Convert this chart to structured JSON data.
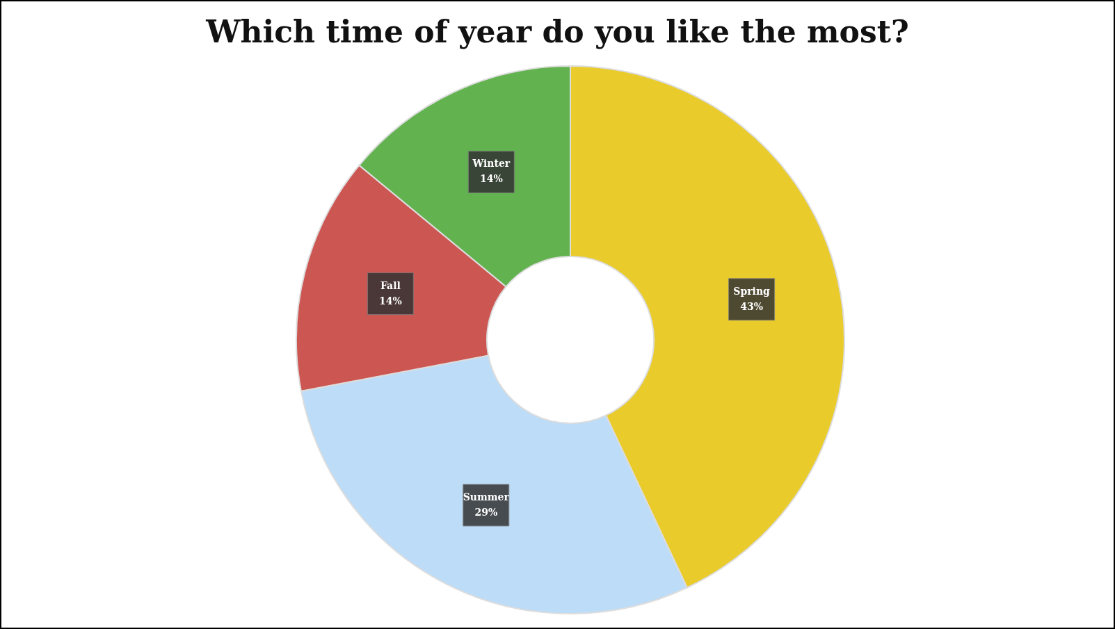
{
  "chart_data": {
    "type": "donut",
    "title": "Which time of year do you like the most?",
    "categories": [
      "Spring",
      "Summer",
      "Fall",
      "Winter"
    ],
    "values": [
      43,
      29,
      14,
      14
    ],
    "value_labels": [
      "43%",
      "29%",
      "14%",
      "14%"
    ],
    "colors": [
      "#e9cb2c",
      "#bcdcf7",
      "#cc5652",
      "#62b24f"
    ],
    "legend": false
  }
}
